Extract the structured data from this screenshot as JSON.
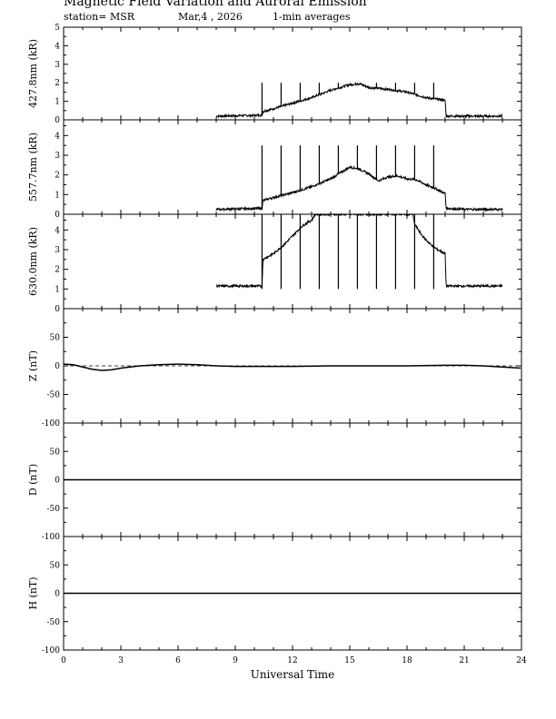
{
  "header": {
    "title": "Magnetic Field Variation and Auroral Emission",
    "station": "station= MSR",
    "date": "Mar,4  , 2026",
    "averaging": "1-min averages"
  },
  "chart_data": [
    {
      "type": "line",
      "ylabel": "427.8nm (kR)",
      "ylim": [
        0,
        5
      ],
      "yticks": [
        0,
        1,
        2,
        3,
        4,
        5
      ],
      "x_range_hours": [
        0,
        24
      ],
      "data_start_hour": 8,
      "data_end_hour": 23,
      "x": [
        8,
        10.4,
        10.45,
        11,
        12,
        13,
        14,
        15,
        15.5,
        16,
        17,
        18,
        19,
        20,
        20.05,
        21,
        22,
        23
      ],
      "y": [
        0.2,
        0.25,
        0.45,
        0.6,
        0.9,
        1.2,
        1.6,
        1.9,
        1.95,
        1.75,
        1.65,
        1.5,
        1.2,
        1.05,
        0.2,
        0.2,
        0.2,
        0.2
      ],
      "spike_hours": [
        10.4,
        11.4,
        12.4,
        13.4,
        14.4,
        15.4,
        16.4,
        17.4,
        18.4,
        19.4
      ],
      "spike_top": 2.0
    },
    {
      "type": "line",
      "ylabel": "557.7nm (kR)",
      "ylim": [
        0,
        4.8
      ],
      "yticks": [
        0,
        1,
        2,
        3,
        4
      ],
      "x_range_hours": [
        0,
        24
      ],
      "data_start_hour": 8,
      "data_end_hour": 23,
      "x": [
        8,
        10.4,
        10.45,
        11,
        12,
        13,
        14,
        14.5,
        15,
        15.5,
        16,
        16.5,
        17,
        17.5,
        18,
        18.5,
        19,
        19.5,
        20,
        20.05,
        21,
        22,
        23
      ],
      "y": [
        0.25,
        0.3,
        0.7,
        0.85,
        1.1,
        1.4,
        1.8,
        2.1,
        2.4,
        2.3,
        2.05,
        1.7,
        1.9,
        1.95,
        1.8,
        1.75,
        1.5,
        1.3,
        1.05,
        0.3,
        0.25,
        0.25,
        0.25
      ],
      "spike_hours": [
        10.4,
        11.4,
        12.4,
        13.4,
        14.4,
        15.4,
        16.4,
        17.4,
        18.4,
        19.4
      ],
      "spike_top": 3.5
    },
    {
      "type": "line",
      "ylabel": "630.0nm (kR)",
      "ylim": [
        0,
        4.8
      ],
      "yticks": [
        0,
        1,
        2,
        3,
        4
      ],
      "x_range_hours": [
        0,
        24
      ],
      "data_start_hour": 8,
      "data_end_hour": 23,
      "x": [
        8,
        10.4,
        10.45,
        11,
        11.5,
        12,
        12.5,
        13,
        13.2,
        18.3,
        18.4,
        18.8,
        19.2,
        19.6,
        20,
        20.05,
        21,
        22,
        23
      ],
      "y": [
        1.15,
        1.15,
        2.5,
        2.8,
        3.2,
        3.7,
        4.2,
        4.5,
        4.8,
        4.8,
        4.3,
        3.7,
        3.3,
        3.0,
        2.8,
        1.15,
        1.15,
        1.15,
        1.15
      ],
      "spike_hours": [
        10.4,
        11.4,
        12.4,
        13.4,
        14.4,
        15.4,
        16.4,
        17.4,
        18.4,
        19.4
      ],
      "spike_top": 4.8,
      "spike_bottom": 1.0
    },
    {
      "type": "line",
      "ylabel": "Z (nT)",
      "ylim": [
        -100,
        100
      ],
      "yticks": [
        -100,
        -50,
        0,
        50
      ],
      "x": [
        0,
        0.5,
        1,
        1.5,
        2,
        2.5,
        3,
        4,
        5,
        6,
        7,
        8,
        9,
        10,
        12,
        14,
        16,
        18,
        20,
        21,
        22,
        23,
        24
      ],
      "y": [
        3,
        2,
        -2,
        -6,
        -8,
        -7,
        -4,
        0,
        2,
        3,
        2,
        0,
        -1,
        -1,
        -1,
        0,
        0,
        0,
        1,
        1,
        0,
        -2,
        -4
      ],
      "baseline": 0
    },
    {
      "type": "line",
      "ylabel": "D (nT)",
      "ylim": [
        -100,
        100
      ],
      "yticks": [
        -100,
        -50,
        0,
        50
      ],
      "x": [
        0,
        24
      ],
      "y": [
        0,
        0
      ],
      "baseline": 0
    },
    {
      "type": "line",
      "ylabel": "H (nT)",
      "ylim": [
        -100,
        100
      ],
      "yticks": [
        -100,
        -50,
        0,
        50
      ],
      "x": [
        0,
        24
      ],
      "y": [
        0,
        0
      ],
      "baseline": 0,
      "xlabel": "Universal Time",
      "xticks": [
        0,
        3,
        6,
        9,
        12,
        15,
        18,
        21,
        24
      ]
    }
  ]
}
